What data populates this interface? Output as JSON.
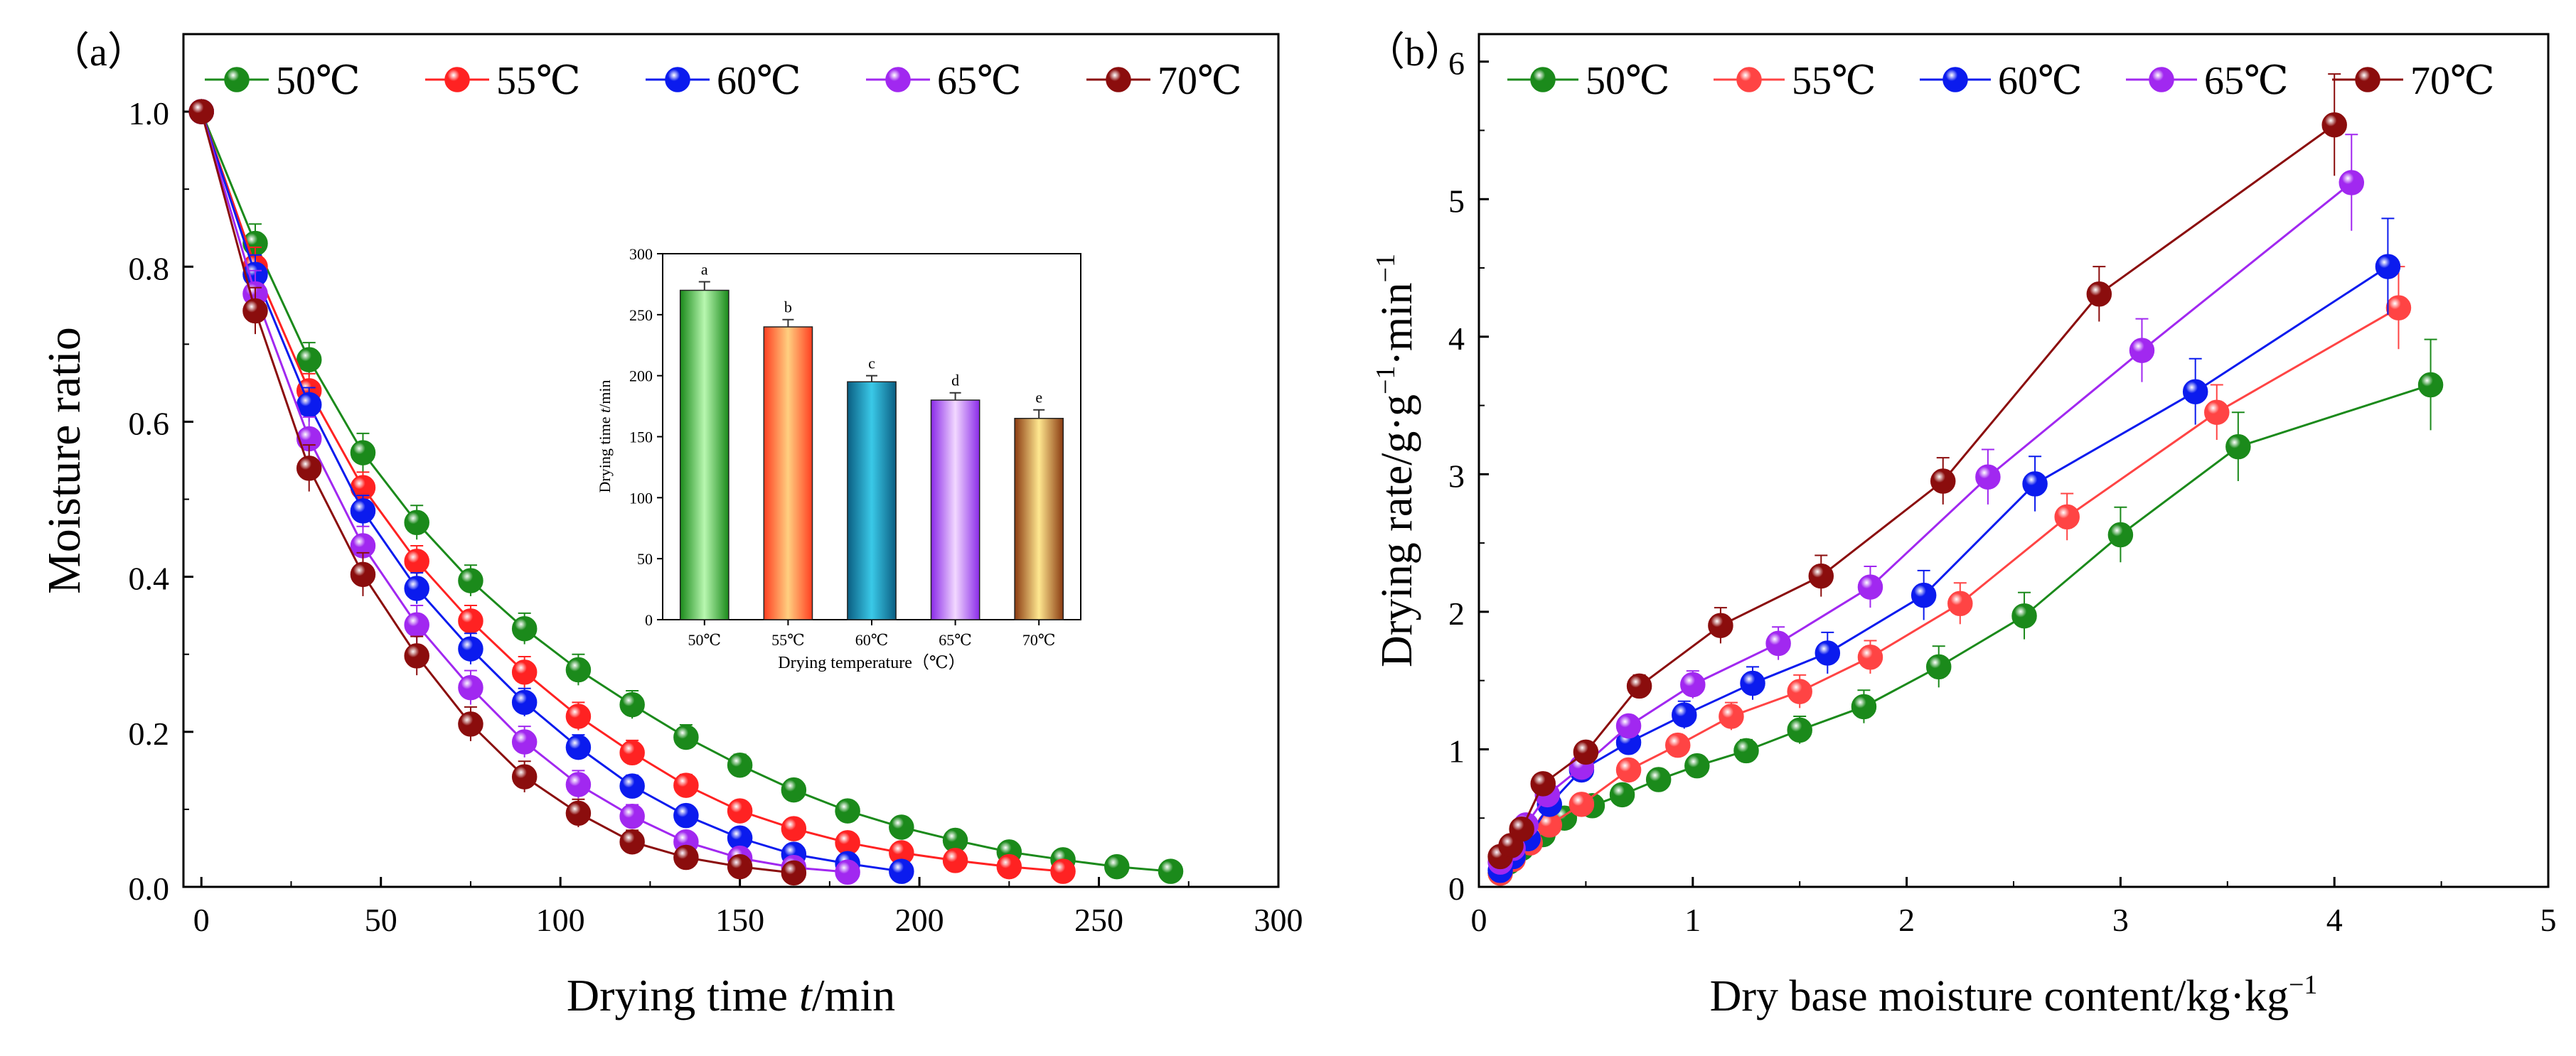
{
  "chart_data": [
    {
      "panel_label": "（a）",
      "type": "line",
      "xlabel_main": "Drying time ",
      "xlabel_var": "t",
      "xlabel_unit": "/min",
      "ylabel": "Moisture ratio",
      "xlim": [
        -5,
        300
      ],
      "ylim": [
        0,
        1.1
      ],
      "xticks": [
        "0",
        "50",
        "100",
        "150",
        "200",
        "250",
        "300"
      ],
      "yticks": [
        "0.0",
        "0.2",
        "0.4",
        "0.6",
        "0.8",
        "1.0"
      ],
      "xtick_values": [
        0,
        50,
        100,
        150,
        200,
        250,
        300
      ],
      "ytick_values": [
        0,
        0.2,
        0.4,
        0.6,
        0.8,
        1.0
      ],
      "series": [
        {
          "name": "50℃",
          "color": "#1b8a1b",
          "x": [
            0,
            15,
            30,
            45,
            60,
            75,
            90,
            105,
            120,
            135,
            150,
            165,
            180,
            195,
            210,
            225,
            240,
            255,
            270
          ],
          "y": [
            1.0,
            0.83,
            0.68,
            0.56,
            0.47,
            0.395,
            0.333,
            0.28,
            0.235,
            0.193,
            0.157,
            0.125,
            0.098,
            0.077,
            0.06,
            0.045,
            0.035,
            0.026,
            0.02
          ],
          "err": [
            0,
            0.025,
            0.022,
            0.025,
            0.022,
            0.02,
            0.02,
            0.02,
            0.018,
            0.016,
            0.014,
            0.013,
            0.011,
            0.01,
            0.009,
            0.008,
            0.007,
            0.006,
            0.005
          ]
        },
        {
          "name": "55℃",
          "color": "#ff2222",
          "x": [
            0,
            15,
            30,
            45,
            60,
            75,
            90,
            105,
            120,
            135,
            150,
            165,
            180,
            195,
            210,
            225,
            240
          ],
          "y": [
            1.0,
            0.8,
            0.64,
            0.515,
            0.42,
            0.343,
            0.277,
            0.22,
            0.173,
            0.131,
            0.098,
            0.075,
            0.057,
            0.044,
            0.034,
            0.026,
            0.02
          ],
          "err": [
            0,
            0.025,
            0.022,
            0.02,
            0.02,
            0.02,
            0.02,
            0.018,
            0.016,
            0.014,
            0.012,
            0.011,
            0.009,
            0.008,
            0.007,
            0.006,
            0.005
          ]
        },
        {
          "name": "60℃",
          "color": "#0b1bee",
          "x": [
            0,
            15,
            30,
            45,
            60,
            75,
            90,
            105,
            120,
            135,
            150,
            165,
            180,
            195
          ],
          "y": [
            1.0,
            0.79,
            0.622,
            0.485,
            0.385,
            0.307,
            0.238,
            0.18,
            0.13,
            0.092,
            0.063,
            0.042,
            0.03,
            0.02
          ],
          "err": [
            0,
            0.025,
            0.022,
            0.02,
            0.02,
            0.02,
            0.018,
            0.016,
            0.014,
            0.012,
            0.01,
            0.009,
            0.007,
            0.006
          ]
        },
        {
          "name": "65℃",
          "color": "#a128f0",
          "x": [
            0,
            15,
            30,
            45,
            60,
            75,
            90,
            105,
            120,
            135,
            150,
            165,
            180
          ],
          "y": [
            1.0,
            0.765,
            0.578,
            0.44,
            0.338,
            0.257,
            0.187,
            0.132,
            0.091,
            0.058,
            0.037,
            0.025,
            0.019
          ],
          "err": [
            0,
            0.03,
            0.028,
            0.025,
            0.025,
            0.022,
            0.02,
            0.018,
            0.015,
            0.012,
            0.01,
            0.008,
            0.006
          ]
        },
        {
          "name": "70℃",
          "color": "#8b0d0d",
          "x": [
            0,
            15,
            30,
            45,
            60,
            75,
            90,
            105,
            120,
            135,
            150,
            165
          ],
          "y": [
            1.0,
            0.743,
            0.54,
            0.403,
            0.298,
            0.21,
            0.142,
            0.095,
            0.058,
            0.038,
            0.026,
            0.018
          ],
          "err": [
            0,
            0.03,
            0.03,
            0.028,
            0.025,
            0.022,
            0.02,
            0.018,
            0.015,
            0.012,
            0.01,
            0.008
          ]
        }
      ],
      "inset": {
        "type": "bar",
        "xlabel": "Drying temperature（℃）",
        "ylabel_main": "Drying time ",
        "ylabel_var": "t",
        "ylabel_unit": "/min",
        "ylim": [
          0,
          300
        ],
        "yticks": [
          "0",
          "50",
          "100",
          "150",
          "200",
          "250",
          "300"
        ],
        "ytick_values": [
          0,
          50,
          100,
          150,
          200,
          250,
          300
        ],
        "categories": [
          "50℃",
          "55℃",
          "60℃",
          "65℃",
          "70℃"
        ],
        "values": [
          270,
          240,
          195,
          180,
          165
        ],
        "err": [
          7,
          6,
          5,
          6,
          7
        ],
        "letters": [
          "a",
          "b",
          "c",
          "d",
          "e"
        ],
        "colors": [
          [
            "#1a8a1a",
            "#b8f7b0",
            "#1a8a1a"
          ],
          [
            "#ff3e20",
            "#ffcf80",
            "#ff3e20"
          ],
          [
            "#0a5e82",
            "#3ac9e8",
            "#0a5e82"
          ],
          [
            "#8a2ae8",
            "#f2d8ff",
            "#8a2ae8"
          ],
          [
            "#8a3a10",
            "#ffe890",
            "#8a3a10"
          ]
        ]
      }
    },
    {
      "panel_label": "（b）",
      "type": "line",
      "xlabel": "Dry base moisture content/kg·kg",
      "xlabel_sup": "−1",
      "ylabel_main": "Drying rate/g·g",
      "ylabel_sup1": "−1",
      "ylabel_mid": "·min",
      "ylabel_sup2": "−1",
      "xlim": [
        0,
        5
      ],
      "ylim": [
        0,
        6.2
      ],
      "xticks": [
        "0",
        "1",
        "2",
        "3",
        "4",
        "5"
      ],
      "yticks": [
        "0",
        "1",
        "2",
        "3",
        "4",
        "5",
        "6"
      ],
      "xtick_values": [
        0,
        1,
        2,
        3,
        4,
        5
      ],
      "ytick_values": [
        0,
        1,
        2,
        3,
        4,
        5,
        6
      ],
      "series": [
        {
          "name": "50℃",
          "color": "#1b8a1b",
          "x": [
            0.1,
            0.14,
            0.2,
            0.3,
            0.4,
            0.53,
            0.67,
            0.84,
            1.02,
            1.25,
            1.5,
            1.8,
            2.15,
            2.55,
            3.0,
            3.55,
            4.45
          ],
          "y": [
            0.1,
            0.18,
            0.28,
            0.38,
            0.5,
            0.59,
            0.67,
            0.78,
            0.88,
            0.99,
            1.14,
            1.31,
            1.6,
            1.97,
            2.56,
            3.2,
            3.65
          ],
          "err": [
            0,
            0,
            0,
            0,
            0,
            0,
            0,
            0.05,
            0.06,
            0.08,
            0.1,
            0.12,
            0.15,
            0.17,
            0.2,
            0.25,
            0.33
          ]
        },
        {
          "name": "55℃",
          "color": "#ff4444",
          "x": [
            0.1,
            0.16,
            0.24,
            0.33,
            0.48,
            0.7,
            0.93,
            1.18,
            1.5,
            1.83,
            2.25,
            2.75,
            3.45,
            4.3
          ],
          "y": [
            0.1,
            0.2,
            0.32,
            0.45,
            0.6,
            0.85,
            1.03,
            1.24,
            1.42,
            1.67,
            2.06,
            2.69,
            3.45,
            4.21
          ],
          "err": [
            0,
            0,
            0,
            0,
            0,
            0.05,
            0.07,
            0.1,
            0.12,
            0.12,
            0.15,
            0.17,
            0.2,
            0.3
          ]
        },
        {
          "name": "60℃",
          "color": "#0b1bee",
          "x": [
            0.1,
            0.16,
            0.23,
            0.33,
            0.48,
            0.7,
            0.96,
            1.28,
            1.63,
            2.08,
            2.6,
            3.35,
            4.25
          ],
          "y": [
            0.12,
            0.22,
            0.35,
            0.6,
            0.85,
            1.05,
            1.25,
            1.48,
            1.7,
            2.12,
            2.93,
            3.6,
            4.51
          ],
          "err": [
            0,
            0,
            0,
            0,
            0.05,
            0.07,
            0.1,
            0.12,
            0.15,
            0.18,
            0.2,
            0.24,
            0.35
          ]
        },
        {
          "name": "65℃",
          "color": "#a128f0",
          "x": [
            0.1,
            0.16,
            0.22,
            0.32,
            0.48,
            0.7,
            1.0,
            1.4,
            1.83,
            2.38,
            3.1,
            4.08
          ],
          "y": [
            0.18,
            0.28,
            0.45,
            0.67,
            0.87,
            1.17,
            1.47,
            1.77,
            2.18,
            2.98,
            3.9,
            5.12
          ],
          "err": [
            0,
            0,
            0,
            0,
            0.05,
            0.07,
            0.1,
            0.12,
            0.15,
            0.2,
            0.23,
            0.35
          ]
        },
        {
          "name": "70℃",
          "color": "#8b0d0d",
          "x": [
            0.1,
            0.15,
            0.2,
            0.3,
            0.5,
            0.75,
            1.13,
            1.6,
            2.17,
            2.9,
            4.0
          ],
          "y": [
            0.22,
            0.3,
            0.42,
            0.75,
            0.98,
            1.46,
            1.9,
            2.26,
            2.95,
            4.31,
            5.54
          ],
          "err": [
            0,
            0,
            0,
            0,
            0.05,
            0.08,
            0.13,
            0.15,
            0.17,
            0.2,
            0.37
          ]
        }
      ]
    }
  ]
}
